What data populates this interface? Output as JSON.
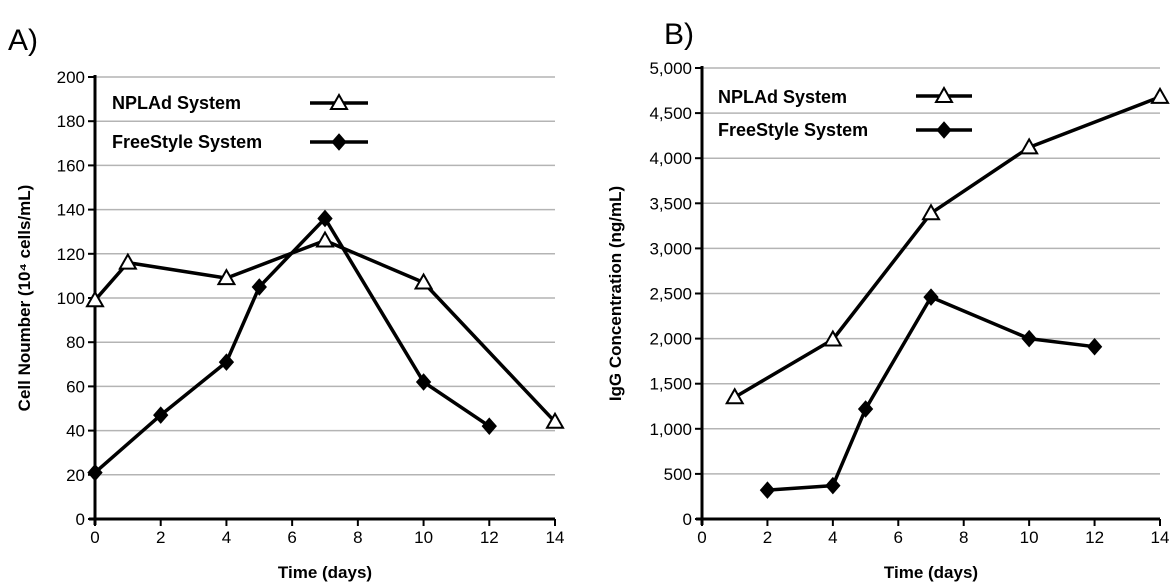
{
  "chart_data": [
    {
      "panel_label": "A)",
      "type": "line",
      "xlabel": "Time (days)",
      "ylabel": "Cell Noumber (10⁴ cells/mL)",
      "xlim": [
        0,
        14
      ],
      "ylim": [
        0,
        200
      ],
      "x_ticks": [
        "0",
        "2",
        "4",
        "6",
        "8",
        "10",
        "12",
        "14"
      ],
      "y_ticks": [
        "0",
        "20",
        "40",
        "60",
        "80",
        "100",
        "120",
        "140",
        "160",
        "180",
        "200"
      ],
      "grid": "horizontal",
      "legend_position": "top-left",
      "series": [
        {
          "name": "NPLAd System",
          "marker": "open-triangle",
          "color": "#000000",
          "x": [
            0,
            1,
            4,
            7,
            10,
            14
          ],
          "y": [
            99,
            116,
            109,
            126,
            107,
            44
          ]
        },
        {
          "name": "FreeStyle System",
          "marker": "filled-diamond",
          "color": "#000000",
          "x": [
            0,
            2,
            4,
            5,
            7,
            10,
            12
          ],
          "y": [
            21,
            47,
            71,
            105,
            136,
            62,
            42
          ]
        }
      ]
    },
    {
      "panel_label": "B)",
      "type": "line",
      "xlabel": "Time  (days)",
      "ylabel": "IgG Concentration (ng/mL)",
      "xlim": [
        0,
        14
      ],
      "ylim": [
        0,
        5000
      ],
      "x_ticks": [
        "0",
        "2",
        "4",
        "6",
        "8",
        "10",
        "12",
        "14"
      ],
      "y_ticks": [
        "0",
        "500",
        "1,000",
        "1,500",
        "2,000",
        "2,500",
        "3,000",
        "3,500",
        "4,000",
        "4,500",
        "5,000"
      ],
      "grid": "horizontal",
      "legend_position": "top-left",
      "series": [
        {
          "name": "NPLAd System",
          "marker": "open-triangle",
          "color": "#000000",
          "x": [
            1,
            4,
            7,
            10,
            14
          ],
          "y": [
            1350,
            1990,
            3390,
            4120,
            4680
          ]
        },
        {
          "name": "FreeStyle System",
          "marker": "filled-diamond",
          "color": "#000000",
          "x": [
            2,
            4,
            5,
            7,
            10,
            12
          ],
          "y": [
            320,
            370,
            1220,
            2460,
            2000,
            1910
          ]
        }
      ]
    }
  ]
}
